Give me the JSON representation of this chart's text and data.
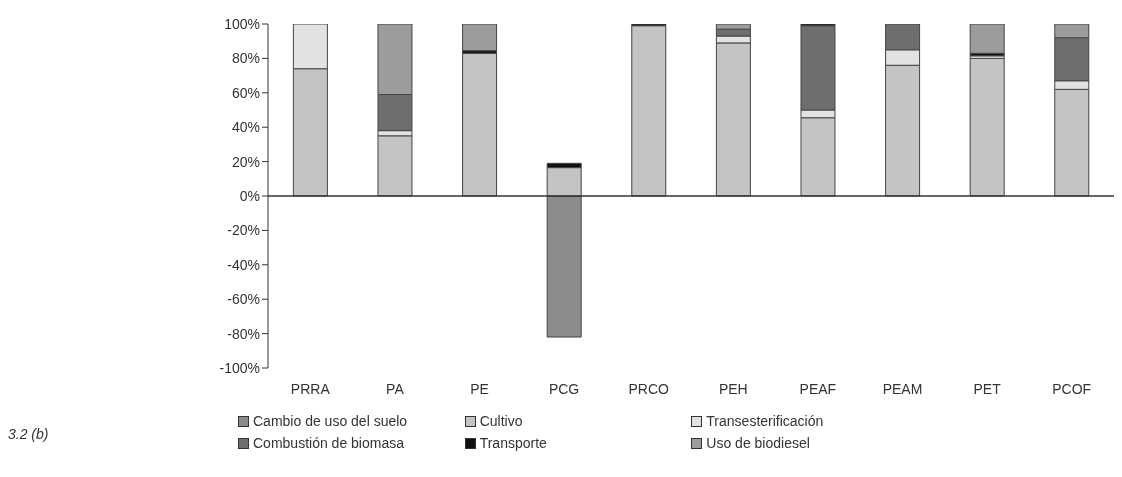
{
  "chart_data": {
    "type": "bar",
    "stacked": true,
    "categories": [
      "PRRA",
      "PA",
      "PE",
      "PCG",
      "PRCO",
      "PEH",
      "PEAF",
      "PEAM",
      "PET",
      "PCOF"
    ],
    "series": [
      {
        "name": "Cambio de uso del suelo",
        "color": "#8c8c8c",
        "values": [
          0,
          0,
          0,
          -82,
          0,
          0,
          0,
          0,
          0,
          0
        ]
      },
      {
        "name": "Cultivo",
        "color": "#c4c4c4",
        "values": [
          74,
          35,
          83,
          16.5,
          99,
          89,
          45.5,
          76,
          80,
          62
        ]
      },
      {
        "name": "Transesterificación",
        "color": "#e2e2e2",
        "values": [
          26,
          3,
          0,
          0,
          0,
          4,
          4.5,
          9,
          1.5,
          5
        ]
      },
      {
        "name": "Combustión de biomasa",
        "color": "#6e6e6e",
        "values": [
          0,
          21,
          0,
          0,
          0,
          4,
          49,
          15,
          0,
          25
        ]
      },
      {
        "name": "Transporte",
        "color": "#111111",
        "values": [
          0,
          0,
          1.5,
          2.5,
          1,
          0,
          1,
          0,
          1.5,
          0
        ]
      },
      {
        "name": "Uso de biodiesel",
        "color": "#9c9c9c",
        "values": [
          0,
          41,
          15.5,
          0,
          0,
          3,
          0,
          0,
          17,
          8
        ]
      }
    ],
    "ylim": [
      -100,
      100
    ],
    "yticks": [
      {
        "value": -100,
        "label": "-100%"
      },
      {
        "value": -80,
        "label": "-80%"
      },
      {
        "value": -60,
        "label": "-60%"
      },
      {
        "value": -40,
        "label": "-40%"
      },
      {
        "value": -20,
        "label": "-20%"
      },
      {
        "value": 0,
        "label": "0%"
      },
      {
        "value": 20,
        "label": "20%"
      },
      {
        "value": 40,
        "label": "40%"
      },
      {
        "value": 60,
        "label": "60%"
      },
      {
        "value": 80,
        "label": "80%"
      },
      {
        "value": 100,
        "label": "100%"
      }
    ],
    "legend": "bottom",
    "annotations": [
      "3.2 (b)"
    ]
  }
}
